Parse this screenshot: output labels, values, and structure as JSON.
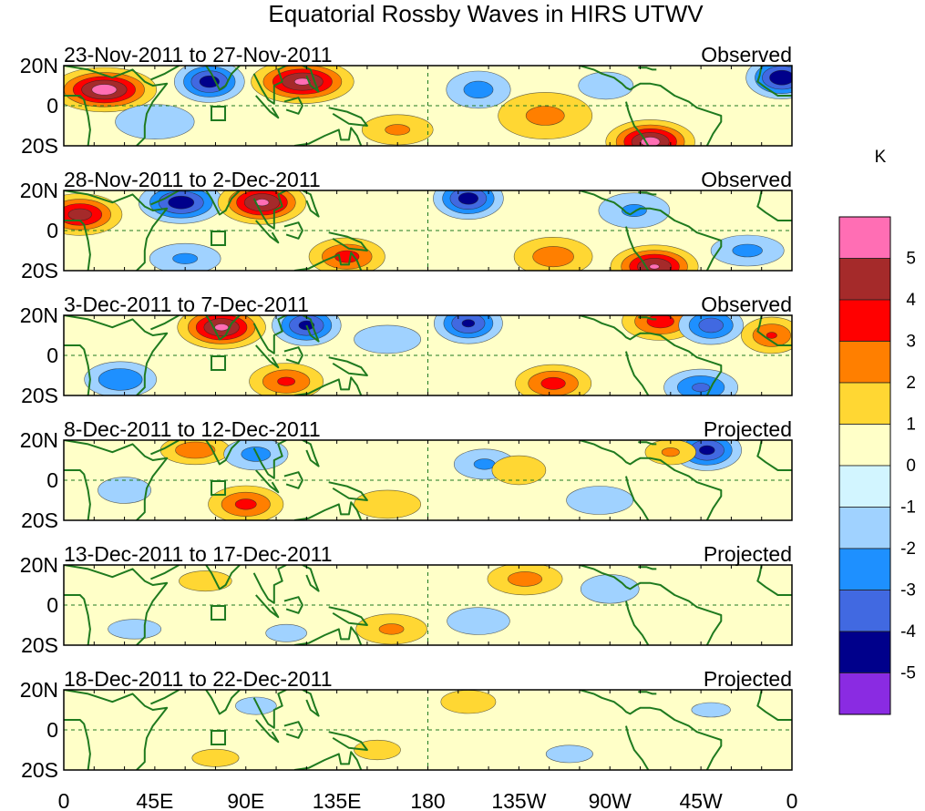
{
  "chart_data": {
    "type": "heatmap",
    "title": "Equatorial Rossby Waves in HIRS UTWV",
    "units": "K",
    "x_ticks": [
      "0",
      "45E",
      "90E",
      "135E",
      "180",
      "135W",
      "90W",
      "45W",
      "0"
    ],
    "y_ticks": [
      "20N",
      "0",
      "20S"
    ],
    "xlim": [
      0,
      360
    ],
    "ylim": [
      -20,
      20
    ],
    "colorbar": {
      "levels": [
        "5",
        "4",
        "3",
        "2",
        "1",
        "0",
        "-1",
        "-2",
        "-3",
        "-4",
        "-5"
      ],
      "colors": [
        "#ff6eb4",
        "#a52a2a",
        "#ff0000",
        "#ff7f00",
        "#ffd733",
        "#ffffc8",
        "#d2f5ff",
        "#a0d2ff",
        "#1e90ff",
        "#4169e1",
        "#00008b",
        "#8a2be2"
      ]
    },
    "panels": [
      {
        "period": "23-Nov-2011 to 27-Nov-2011",
        "kind": "Observed",
        "anomalies": [
          {
            "lon": 20,
            "lat": 8,
            "v": 5.5,
            "sx": 14,
            "sy": 6
          },
          {
            "lon": 72,
            "lat": 12,
            "v": -4.5,
            "sx": 10,
            "sy": 6
          },
          {
            "lon": 118,
            "lat": 12,
            "v": 5.2,
            "sx": 14,
            "sy": 6
          },
          {
            "lon": 165,
            "lat": -12,
            "v": 2.2,
            "sx": 14,
            "sy": 6
          },
          {
            "lon": 205,
            "lat": 8,
            "v": -2.4,
            "sx": 12,
            "sy": 7
          },
          {
            "lon": 238,
            "lat": -5,
            "v": 2.3,
            "sx": 18,
            "sy": 9
          },
          {
            "lon": 290,
            "lat": -18,
            "v": 5.4,
            "sx": 12,
            "sy": 6
          },
          {
            "lon": 355,
            "lat": 14,
            "v": -4.8,
            "sx": 10,
            "sy": 6
          },
          {
            "lon": 45,
            "lat": -8,
            "v": -1.8,
            "sx": 18,
            "sy": 8
          },
          {
            "lon": 268,
            "lat": 10,
            "v": -1.6,
            "sx": 14,
            "sy": 7
          }
        ]
      },
      {
        "period": "28-Nov-2011 to 2-Dec-2011",
        "kind": "Observed",
        "anomalies": [
          {
            "lon": 8,
            "lat": 8,
            "v": 4.5,
            "sx": 12,
            "sy": 6
          },
          {
            "lon": 58,
            "lat": 14,
            "v": -4.6,
            "sx": 12,
            "sy": 6
          },
          {
            "lon": 98,
            "lat": 14,
            "v": 5.2,
            "sx": 12,
            "sy": 6
          },
          {
            "lon": 140,
            "lat": -13,
            "v": 3.4,
            "sx": 12,
            "sy": 6
          },
          {
            "lon": 200,
            "lat": 16,
            "v": -4.5,
            "sx": 10,
            "sy": 6
          },
          {
            "lon": 242,
            "lat": -13,
            "v": 2.6,
            "sx": 14,
            "sy": 7
          },
          {
            "lon": 292,
            "lat": -18,
            "v": 5.1,
            "sx": 12,
            "sy": 6
          },
          {
            "lon": 282,
            "lat": 10,
            "v": -2.2,
            "sx": 14,
            "sy": 7
          },
          {
            "lon": 60,
            "lat": -14,
            "v": -2.2,
            "sx": 14,
            "sy": 6
          },
          {
            "lon": 338,
            "lat": -10,
            "v": -2.3,
            "sx": 14,
            "sy": 6
          }
        ]
      },
      {
        "period": "3-Dec-2011 to 7-Dec-2011",
        "kind": "Observed",
        "anomalies": [
          {
            "lon": 78,
            "lat": 14,
            "v": 5.2,
            "sx": 12,
            "sy": 6
          },
          {
            "lon": 120,
            "lat": 15,
            "v": -4.3,
            "sx": 10,
            "sy": 6
          },
          {
            "lon": 110,
            "lat": -13,
            "v": 3.2,
            "sx": 12,
            "sy": 6
          },
          {
            "lon": 200,
            "lat": 16,
            "v": -4.2,
            "sx": 10,
            "sy": 6
          },
          {
            "lon": 242,
            "lat": -14,
            "v": 3.4,
            "sx": 12,
            "sy": 6
          },
          {
            "lon": 295,
            "lat": 17,
            "v": 3.5,
            "sx": 12,
            "sy": 6
          },
          {
            "lon": 320,
            "lat": 15,
            "v": -3.6,
            "sx": 10,
            "sy": 6
          },
          {
            "lon": 350,
            "lat": 10,
            "v": 3.1,
            "sx": 10,
            "sy": 6
          },
          {
            "lon": 28,
            "lat": -12,
            "v": -3.0,
            "sx": 12,
            "sy": 6
          },
          {
            "lon": 160,
            "lat": 8,
            "v": -2.0,
            "sx": 14,
            "sy": 6
          },
          {
            "lon": 315,
            "lat": -16,
            "v": -3.2,
            "sx": 12,
            "sy": 6
          }
        ]
      },
      {
        "period": "8-Dec-2011 to 12-Dec-2011",
        "kind": "Projected",
        "anomalies": [
          {
            "lon": 65,
            "lat": 15,
            "v": 2.8,
            "sx": 12,
            "sy": 5
          },
          {
            "lon": 95,
            "lat": 13,
            "v": -2.4,
            "sx": 12,
            "sy": 6
          },
          {
            "lon": 90,
            "lat": -12,
            "v": 3.3,
            "sx": 12,
            "sy": 6
          },
          {
            "lon": 208,
            "lat": 8,
            "v": -2.2,
            "sx": 12,
            "sy": 6
          },
          {
            "lon": 318,
            "lat": 15,
            "v": -4.3,
            "sx": 10,
            "sy": 6
          },
          {
            "lon": 300,
            "lat": 14,
            "v": 2.2,
            "sx": 10,
            "sy": 5
          },
          {
            "lon": 225,
            "lat": 5,
            "v": 1.2,
            "sx": 22,
            "sy": 12
          },
          {
            "lon": 160,
            "lat": -12,
            "v": 2.0,
            "sx": 14,
            "sy": 6
          },
          {
            "lon": 265,
            "lat": -10,
            "v": -2.0,
            "sx": 14,
            "sy": 6
          },
          {
            "lon": 30,
            "lat": -5,
            "v": -1.4,
            "sx": 16,
            "sy": 8
          }
        ]
      },
      {
        "period": "13-Dec-2011 to 17-Dec-2011",
        "kind": "Projected",
        "anomalies": [
          {
            "lon": 228,
            "lat": 13,
            "v": 2.4,
            "sx": 14,
            "sy": 6
          },
          {
            "lon": 162,
            "lat": -12,
            "v": 2.2,
            "sx": 14,
            "sy": 6
          },
          {
            "lon": 270,
            "lat": 8,
            "v": -1.5,
            "sx": 16,
            "sy": 8
          },
          {
            "lon": 205,
            "lat": -8,
            "v": -1.6,
            "sx": 16,
            "sy": 7
          },
          {
            "lon": 70,
            "lat": 12,
            "v": 1.3,
            "sx": 18,
            "sy": 7
          },
          {
            "lon": 110,
            "lat": -14,
            "v": -1.3,
            "sx": 14,
            "sy": 6
          },
          {
            "lon": 35,
            "lat": -12,
            "v": -1.4,
            "sx": 16,
            "sy": 6
          }
        ]
      },
      {
        "period": "18-Dec-2011 to 22-Dec-2011",
        "kind": "Projected",
        "anomalies": [
          {
            "lon": 200,
            "lat": 14,
            "v": 1.6,
            "sx": 14,
            "sy": 6
          },
          {
            "lon": 75,
            "lat": -14,
            "v": 1.3,
            "sx": 16,
            "sy": 6
          },
          {
            "lon": 95,
            "lat": 12,
            "v": -1.3,
            "sx": 14,
            "sy": 6
          },
          {
            "lon": 155,
            "lat": -10,
            "v": 1.4,
            "sx": 14,
            "sy": 6
          },
          {
            "lon": 250,
            "lat": -12,
            "v": -1.3,
            "sx": 16,
            "sy": 6
          },
          {
            "lon": 320,
            "lat": 10,
            "v": -1.2,
            "sx": 16,
            "sy": 6
          }
        ]
      }
    ]
  }
}
